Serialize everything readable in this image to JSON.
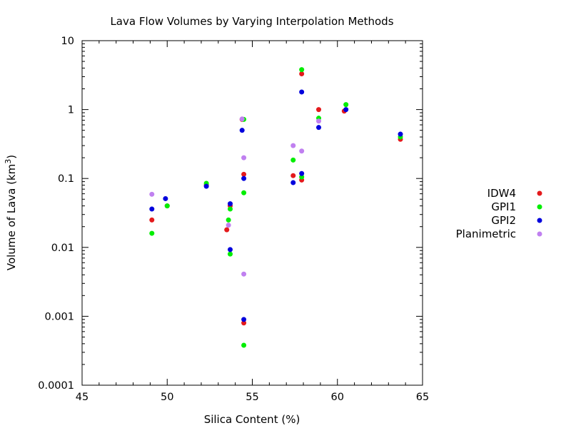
{
  "chart_data": {
    "type": "scatter",
    "title": "Lava Flow Volumes by Varying Interpolation Methods",
    "xlabel": "Silica Content (%)",
    "ylabel_base": "Volume of Lava (km",
    "ylabel_sup": "3",
    "ylabel_end": ")",
    "xlim": [
      45,
      65
    ],
    "ylim": [
      0.0001,
      10
    ],
    "yscale": "log",
    "xticks": [
      45,
      50,
      55,
      60,
      65
    ],
    "xtick_labels": [
      "45",
      "50",
      "55",
      "60",
      "65"
    ],
    "yticks": [
      0.0001,
      0.001,
      0.01,
      0.1,
      1,
      10
    ],
    "ytick_labels": [
      "0.0001",
      "0.001",
      "0.01",
      "0.1",
      "1",
      "10"
    ],
    "grid": false,
    "legend_position": "right",
    "series": [
      {
        "name": "IDW4",
        "color": "#e41a1c",
        "points": [
          [
            49.1,
            0.025
          ],
          [
            50.0,
            0.04
          ],
          [
            52.3,
            0.08
          ],
          [
            53.5,
            0.018
          ],
          [
            53.7,
            0.04
          ],
          [
            54.4,
            0.72
          ],
          [
            54.5,
            0.115
          ],
          [
            54.5,
            0.0008
          ],
          [
            57.4,
            0.11
          ],
          [
            57.9,
            0.095
          ],
          [
            57.9,
            3.3
          ],
          [
            58.9,
            1.0
          ],
          [
            60.4,
            0.95
          ],
          [
            63.7,
            0.37
          ]
        ]
      },
      {
        "name": "GPI1",
        "color": "#00ee00",
        "points": [
          [
            49.1,
            0.016
          ],
          [
            50.0,
            0.04
          ],
          [
            52.3,
            0.085
          ],
          [
            53.6,
            0.025
          ],
          [
            53.7,
            0.036
          ],
          [
            53.7,
            0.008
          ],
          [
            54.5,
            0.062
          ],
          [
            54.5,
            0.00038
          ],
          [
            54.5,
            0.72
          ],
          [
            57.4,
            0.185
          ],
          [
            57.9,
            0.105
          ],
          [
            57.9,
            3.8
          ],
          [
            58.9,
            0.75
          ],
          [
            60.5,
            1.18
          ],
          [
            63.7,
            0.4
          ]
        ]
      },
      {
        "name": "GPI2",
        "color": "#0000dd",
        "points": [
          [
            49.1,
            0.036
          ],
          [
            49.9,
            0.051
          ],
          [
            52.3,
            0.077
          ],
          [
            53.7,
            0.0093
          ],
          [
            53.7,
            0.043
          ],
          [
            54.4,
            0.5
          ],
          [
            54.5,
            0.1
          ],
          [
            54.5,
            0.0009
          ],
          [
            57.4,
            0.087
          ],
          [
            57.9,
            0.118
          ],
          [
            57.9,
            1.8
          ],
          [
            58.9,
            0.55
          ],
          [
            60.5,
            1.0
          ],
          [
            63.7,
            0.44
          ]
        ]
      },
      {
        "name": "Planimetric",
        "color": "#c080f0",
        "points": [
          [
            49.1,
            0.059
          ],
          [
            53.6,
            0.021
          ],
          [
            54.4,
            0.73
          ],
          [
            54.5,
            0.2
          ],
          [
            54.5,
            0.0041
          ],
          [
            57.4,
            0.3
          ],
          [
            57.9,
            0.25
          ],
          [
            58.9,
            0.68
          ]
        ]
      }
    ]
  }
}
